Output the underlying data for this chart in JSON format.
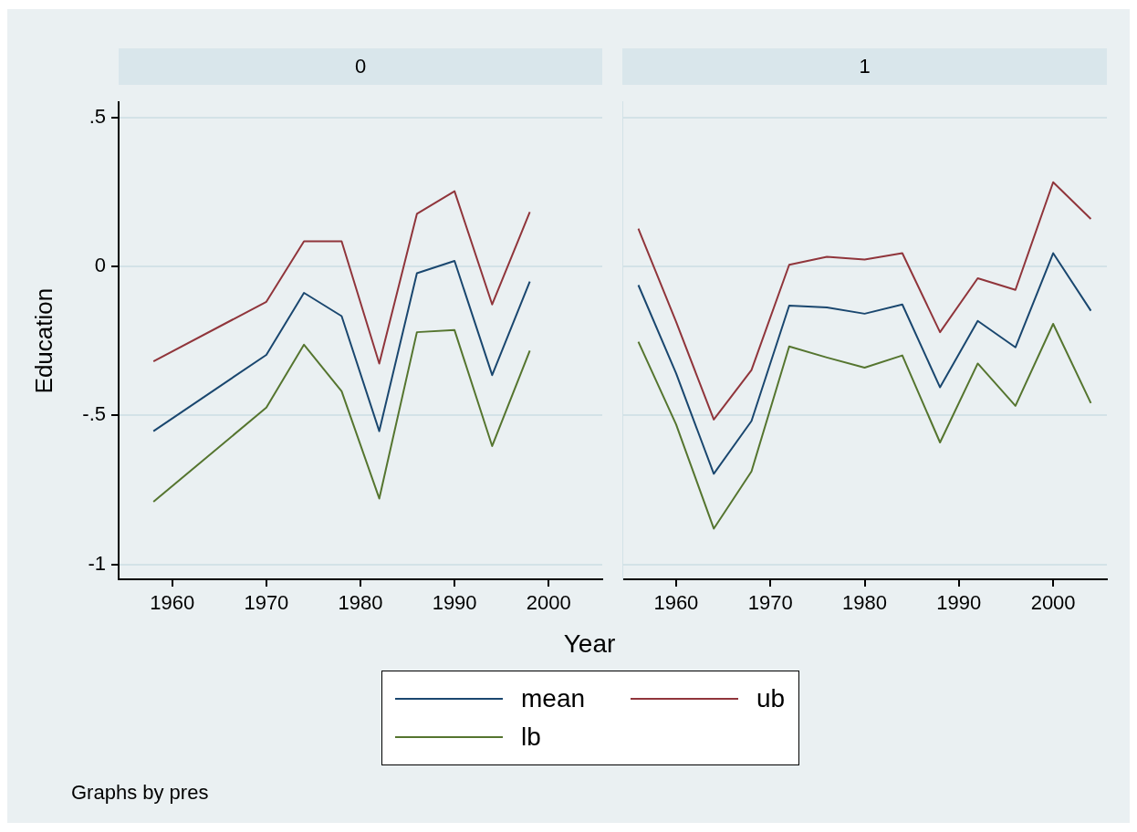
{
  "chart_data": [
    {
      "type": "line",
      "title": "0",
      "xlabel": "Year",
      "ylabel": "Education",
      "annotations": [
        "Graphs by pres"
      ],
      "x": [
        1958,
        1970,
        1974,
        1978,
        1982,
        1986,
        1990,
        1994,
        1998
      ],
      "series": [
        {
          "name": "mean",
          "color": "#1a476f",
          "values": [
            -0.553,
            -0.297,
            -0.089,
            -0.167,
            -0.553,
            -0.023,
            0.018,
            -0.365,
            -0.051
          ]
        },
        {
          "name": "ub",
          "color": "#90353b",
          "values": [
            -0.319,
            -0.119,
            0.084,
            0.084,
            -0.326,
            0.176,
            0.252,
            -0.128,
            0.182
          ]
        },
        {
          "name": "lb",
          "color": "#55752f",
          "values": [
            -0.79,
            -0.474,
            -0.263,
            -0.419,
            -0.779,
            -0.221,
            -0.214,
            -0.603,
            -0.283
          ]
        }
      ],
      "xlim": [
        1954.3,
        2005.7
      ],
      "xticks": [
        1960,
        1970,
        1980,
        1990,
        2000
      ],
      "ylim": [
        -1.05,
        0.55
      ],
      "yticks": [
        {
          "value": 0.5,
          "label": ".5"
        },
        0,
        {
          "value": -0.5,
          "label": "-.5"
        },
        -1
      ],
      "grid": "y",
      "legend": "bottom",
      "marker": "none",
      "line_style": "solid"
    },
    {
      "type": "line",
      "title": "1",
      "x": [
        1956,
        1960,
        1964,
        1968,
        1972,
        1976,
        1980,
        1984,
        1988,
        1992,
        1996,
        2000,
        2004
      ],
      "series": [
        {
          "color": "#1a476f",
          "values": [
            -0.063,
            -0.359,
            -0.696,
            -0.519,
            -0.132,
            -0.138,
            -0.159,
            -0.128,
            -0.406,
            -0.183,
            -0.272,
            0.044,
            -0.149
          ]
        },
        {
          "color": "#90353b",
          "values": [
            0.126,
            -0.186,
            -0.514,
            -0.348,
            0.005,
            0.032,
            0.023,
            0.044,
            -0.221,
            -0.04,
            -0.079,
            0.282,
            0.159
          ]
        },
        {
          "color": "#55752f",
          "values": [
            -0.253,
            -0.53,
            -0.88,
            -0.688,
            -0.269,
            -0.306,
            -0.34,
            -0.299,
            -0.591,
            -0.326,
            -0.468,
            -0.193,
            -0.459
          ]
        }
      ],
      "xlim": [
        1954.3,
        2005.7
      ],
      "xticks": [
        1960,
        1970,
        1980,
        1990,
        2000
      ],
      "ylim": [
        -1.05,
        0.55
      ],
      "yticks": [
        0.5,
        0,
        -0.5,
        -1
      ],
      "tick_labels": "x",
      "grid": "y",
      "marker": "none",
      "line_style": "solid"
    }
  ]
}
